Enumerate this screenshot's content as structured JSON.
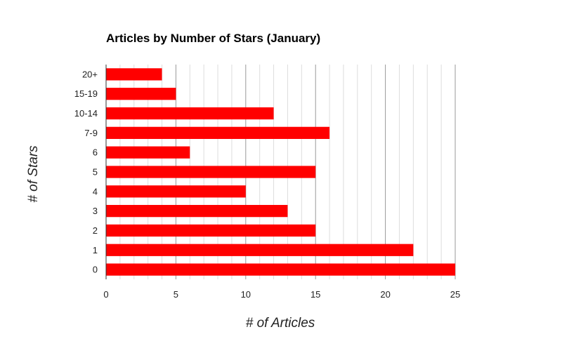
{
  "chart_data": {
    "type": "bar",
    "orientation": "horizontal",
    "title": "Articles by Number of Stars (January)",
    "xlabel": "# of Articles",
    "ylabel": "# of Stars",
    "categories": [
      "20+",
      "15-19",
      "10-14",
      "7-9",
      "6",
      "5",
      "4",
      "3",
      "2",
      "1",
      "0"
    ],
    "values": [
      4,
      5,
      12,
      16,
      6,
      15,
      10,
      13,
      15,
      22,
      25
    ],
    "xlim": [
      0,
      25
    ],
    "xticks": [
      "0",
      "5",
      "10",
      "15",
      "20",
      "25"
    ],
    "grid": true,
    "bar_color": "#ff0000"
  }
}
